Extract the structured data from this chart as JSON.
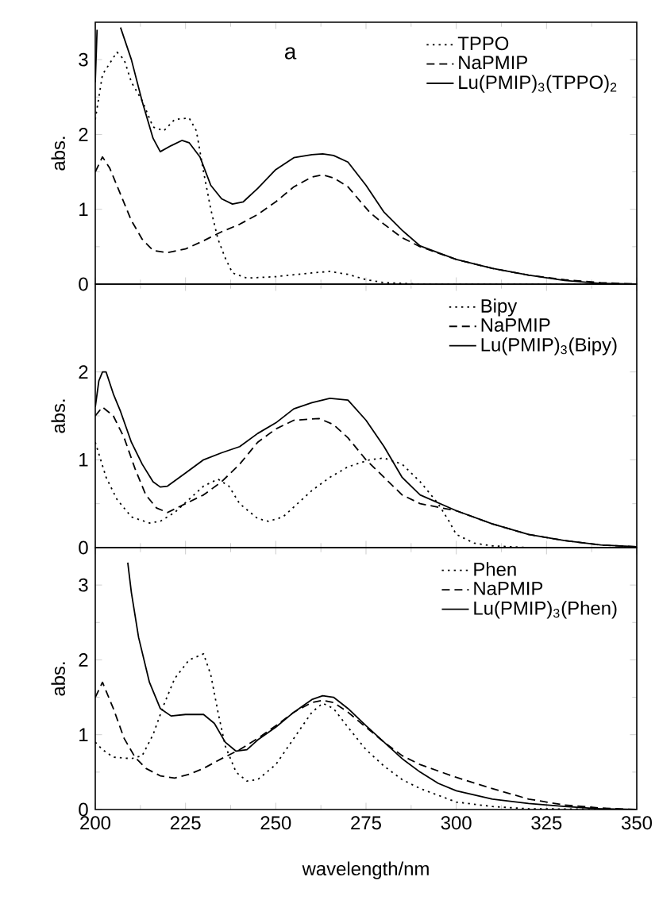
{
  "chart_data": [
    {
      "type": "line",
      "ylabel": "abs.",
      "annotations": [
        "a"
      ],
      "xlim": [
        200,
        350
      ],
      "xticks": [
        200,
        225,
        250,
        275,
        300,
        325,
        350
      ],
      "ylim": [
        0,
        3.5
      ],
      "yticks": [
        0,
        1,
        2,
        3
      ],
      "tick_labels": "y",
      "legend": "top right",
      "series": [
        {
          "name": "TPPO",
          "color": "#000000",
          "line_style": "dotted",
          "x": [
            200,
            202,
            204,
            206,
            208,
            210,
            213,
            216,
            219,
            222,
            226,
            228,
            230,
            232,
            234,
            236,
            238,
            242,
            250,
            260,
            265,
            270,
            275,
            280,
            290,
            350
          ],
          "values": [
            2.2,
            2.8,
            2.95,
            3.1,
            3.0,
            2.7,
            2.45,
            2.1,
            2.05,
            2.2,
            2.22,
            2.05,
            1.5,
            1.0,
            0.6,
            0.35,
            0.15,
            0.08,
            0.1,
            0.15,
            0.17,
            0.13,
            0.06,
            0.02,
            0,
            0
          ]
        },
        {
          "name": "NaPMIP",
          "color": "#000000",
          "line_style": "dashed",
          "x": [
            200,
            202,
            204,
            207,
            210,
            213,
            216,
            220,
            225,
            230,
            235,
            240,
            245,
            250,
            255,
            260,
            263,
            266,
            270,
            276,
            280,
            285,
            290,
            300,
            310,
            320,
            330,
            340,
            350
          ],
          "values": [
            1.5,
            1.7,
            1.55,
            1.2,
            0.85,
            0.6,
            0.45,
            0.42,
            0.47,
            0.58,
            0.7,
            0.8,
            0.93,
            1.1,
            1.3,
            1.43,
            1.46,
            1.42,
            1.3,
            0.96,
            0.8,
            0.62,
            0.5,
            0.33,
            0.21,
            0.12,
            0.06,
            0.02,
            0
          ]
        },
        {
          "name": "Lu(PMIP)$_{3}$(TPPO)$_{2}$",
          "color": "#000000",
          "line_style": "solid",
          "x": [
            200,
            200.5,
            205,
            207,
            210,
            213,
            216,
            218,
            221,
            224,
            226,
            229,
            232,
            235,
            238,
            241,
            245,
            250,
            255,
            260,
            263,
            266,
            270,
            275,
            280,
            285,
            290,
            300,
            310,
            320,
            330,
            340,
            350
          ],
          "values": [
            2.7,
            3.4,
            null,
            3.43,
            3.0,
            2.44,
            1.95,
            1.77,
            1.85,
            1.92,
            1.89,
            1.7,
            1.32,
            1.14,
            1.07,
            1.1,
            1.28,
            1.53,
            1.69,
            1.73,
            1.74,
            1.72,
            1.63,
            1.32,
            0.96,
            0.72,
            0.51,
            0.33,
            0.21,
            0.12,
            0.05,
            0.01,
            0
          ]
        }
      ]
    },
    {
      "type": "line",
      "ylabel": "abs.",
      "xlim": [
        200,
        350
      ],
      "xticks": [
        200,
        225,
        250,
        275,
        300,
        325,
        350
      ],
      "ylim": [
        0,
        3
      ],
      "yticks": [
        0,
        1,
        2
      ],
      "tick_labels": "y",
      "legend": "top right",
      "series": [
        {
          "name": "Bipy",
          "color": "#000000",
          "line_style": "dotted",
          "x": [
            200,
            203,
            206,
            210,
            215,
            218,
            222,
            226,
            230,
            234,
            237,
            240,
            245,
            248,
            252,
            256,
            260,
            265,
            270,
            276,
            280,
            285,
            290,
            295,
            298,
            300,
            305,
            310,
            320,
            350
          ],
          "values": [
            1.2,
            0.8,
            0.55,
            0.35,
            0.28,
            0.3,
            0.4,
            0.55,
            0.7,
            0.78,
            0.7,
            0.5,
            0.33,
            0.3,
            0.35,
            0.5,
            0.65,
            0.8,
            0.92,
            1.0,
            1.02,
            0.95,
            0.75,
            0.5,
            0.3,
            0.15,
            0.05,
            0.02,
            0,
            0
          ]
        },
        {
          "name": "NaPMIP",
          "color": "#000000",
          "line_style": "dashed",
          "x": [
            200,
            202,
            205,
            208,
            211,
            214,
            217,
            220,
            225,
            230,
            235,
            240,
            245,
            250,
            255,
            262,
            266,
            270,
            275,
            280,
            285,
            290,
            300,
            310,
            320,
            330,
            340,
            350
          ],
          "values": [
            1.5,
            1.6,
            1.5,
            1.25,
            0.9,
            0.6,
            0.45,
            0.4,
            0.5,
            0.6,
            0.75,
            0.95,
            1.2,
            1.35,
            1.45,
            1.47,
            1.4,
            1.25,
            1.0,
            0.8,
            0.6,
            0.5,
            0.42,
            0.27,
            0.15,
            0.08,
            0.03,
            0.01
          ]
        },
        {
          "name": "Lu(PMIP)$_{3}$(Bipy)",
          "color": "#000000",
          "line_style": "solid",
          "x": [
            200,
            201,
            202,
            203,
            205,
            207,
            210,
            213,
            216,
            218,
            220,
            225,
            230,
            235,
            240,
            245,
            250,
            255,
            260,
            265,
            270,
            275,
            280,
            285,
            290,
            300,
            310,
            320,
            330,
            340,
            350
          ],
          "values": [
            1.6,
            1.9,
            2.0,
            2.0,
            1.75,
            1.55,
            1.2,
            0.95,
            0.75,
            0.69,
            0.7,
            0.85,
            1.0,
            1.08,
            1.15,
            1.3,
            1.42,
            1.58,
            1.65,
            1.7,
            1.68,
            1.45,
            1.15,
            0.8,
            0.6,
            0.42,
            0.27,
            0.15,
            0.08,
            0.03,
            0.01
          ]
        }
      ]
    },
    {
      "type": "line",
      "xlabel": "wavelength/nm",
      "ylabel": "abs.",
      "xlim": [
        200,
        350
      ],
      "xticks": [
        200,
        225,
        250,
        275,
        300,
        325,
        350
      ],
      "ylim": [
        0,
        3.5
      ],
      "yticks": [
        0,
        1,
        2,
        3
      ],
      "legend": "top right",
      "series": [
        {
          "name": "Phen",
          "color": "#000000",
          "line_style": "dotted",
          "x": [
            200,
            202,
            205,
            210,
            213,
            216,
            219,
            222,
            226,
            230,
            232,
            234,
            236,
            239,
            242,
            245,
            250,
            255,
            260,
            263,
            266,
            270,
            275,
            280,
            285,
            290,
            300,
            310,
            320,
            350
          ],
          "values": [
            0.9,
            0.8,
            0.7,
            0.68,
            0.72,
            1.0,
            1.4,
            1.75,
            2.0,
            2.08,
            1.8,
            1.3,
            0.85,
            0.5,
            0.38,
            0.4,
            0.6,
            0.95,
            1.3,
            1.42,
            1.35,
            1.1,
            0.8,
            0.58,
            0.4,
            0.28,
            0.1,
            0.04,
            0.01,
            0
          ]
        },
        {
          "name": "NaPMIP",
          "color": "#000000",
          "line_style": "dashed",
          "x": [
            200,
            202,
            205,
            208,
            211,
            214,
            218,
            222,
            226,
            230,
            235,
            240,
            245,
            250,
            255,
            260,
            263,
            266,
            270,
            275,
            280,
            285,
            290,
            300,
            310,
            320,
            330,
            340,
            350
          ],
          "values": [
            1.5,
            1.7,
            1.35,
            0.95,
            0.7,
            0.55,
            0.45,
            0.42,
            0.47,
            0.55,
            0.68,
            0.8,
            0.95,
            1.12,
            1.3,
            1.43,
            1.46,
            1.43,
            1.3,
            1.1,
            0.9,
            0.72,
            0.6,
            0.43,
            0.28,
            0.14,
            0.06,
            0.02,
            0
          ]
        },
        {
          "name": "Lu(PMIP)$_{3}$(Phen)",
          "color": "#000000",
          "line_style": "solid",
          "x": [
            209,
            210,
            212,
            215,
            218,
            221,
            225,
            230,
            233,
            236,
            239,
            242,
            245,
            250,
            255,
            260,
            263,
            266,
            270,
            275,
            280,
            285,
            290,
            295,
            300,
            310,
            320,
            330,
            340,
            350
          ],
          "values": [
            3.3,
            2.9,
            2.3,
            1.7,
            1.35,
            1.25,
            1.27,
            1.27,
            1.15,
            0.9,
            0.78,
            0.8,
            0.93,
            1.1,
            1.3,
            1.47,
            1.52,
            1.5,
            1.35,
            1.12,
            0.9,
            0.68,
            0.5,
            0.35,
            0.25,
            0.14,
            0.08,
            0.04,
            0.01,
            0
          ]
        }
      ]
    }
  ]
}
